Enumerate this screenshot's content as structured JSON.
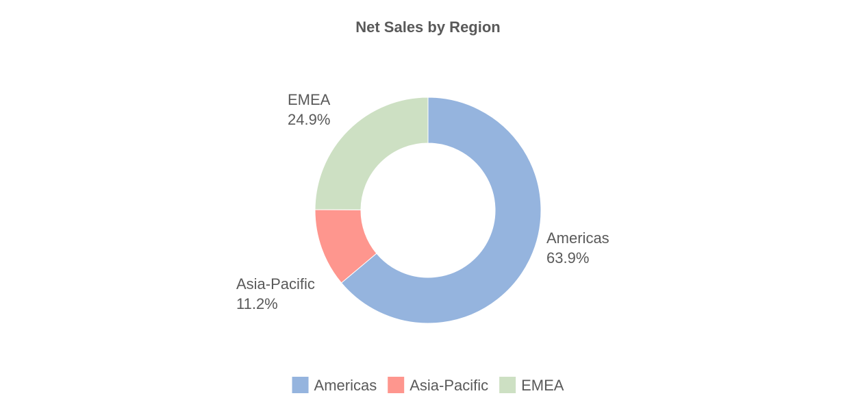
{
  "chart_data": {
    "type": "pie",
    "variant": "donut",
    "title": "Net Sales by Region",
    "categories": [
      "Americas",
      "Asia-Pacific",
      "EMEA"
    ],
    "values": [
      63.9,
      11.2,
      24.9
    ],
    "value_labels": [
      "63.9%",
      "11.2%",
      "24.9%"
    ],
    "unit": "%",
    "colors": [
      "#95b4de",
      "#fe968e",
      "#cde0c3"
    ],
    "legend": {
      "position": "bottom",
      "entries": [
        "Americas",
        "Asia-Pacific",
        "EMEA"
      ]
    },
    "start_angle": "12 o'clock",
    "direction": "clockwise"
  }
}
